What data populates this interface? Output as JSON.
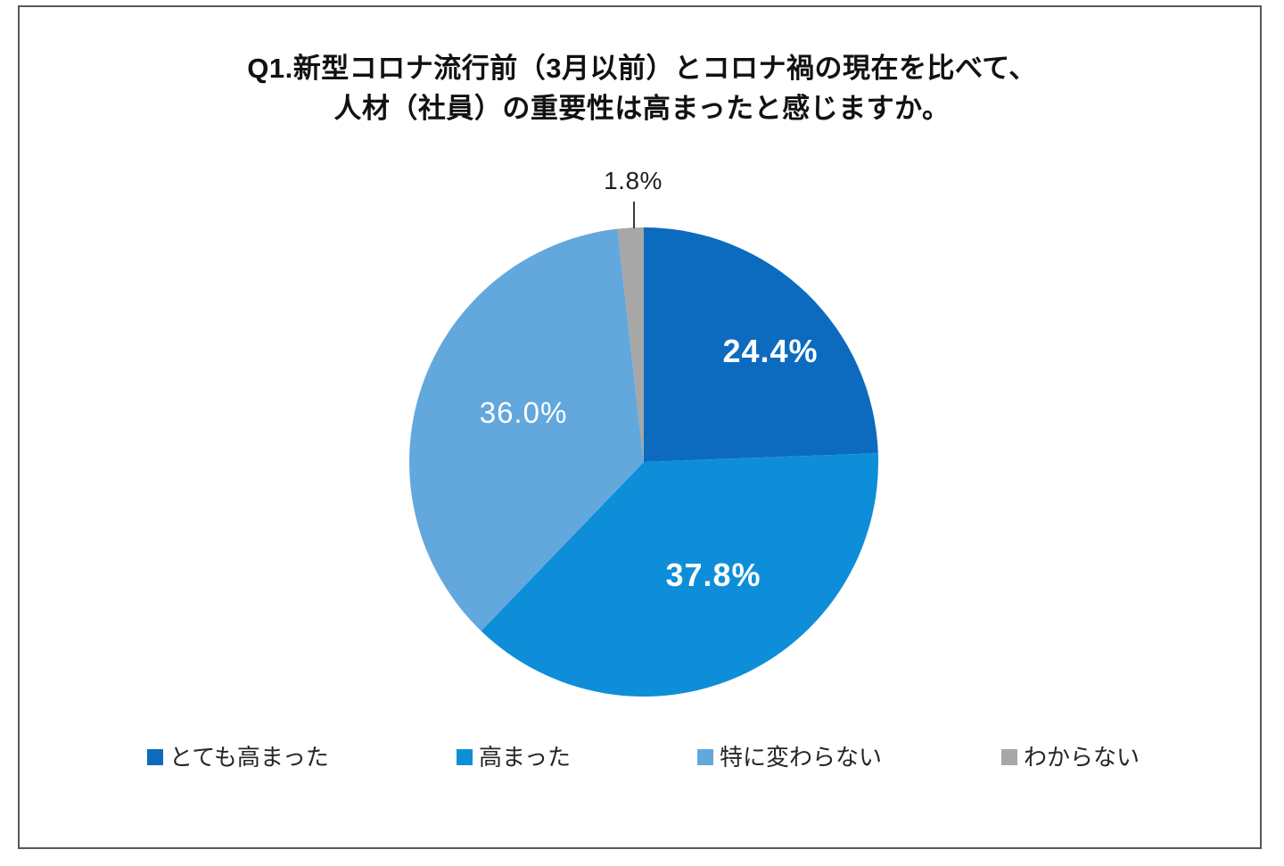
{
  "page": {
    "background_color": "#ffffff",
    "frame_border_color": "#585858"
  },
  "title": {
    "line1": "Q1.新型コロナ流行前（3月以前）とコロナ禍の現在を比べて、",
    "line2": "人材（社員）の重要性は高まったと感じますか。"
  },
  "chart_data": {
    "type": "pie",
    "title": "Q1.新型コロナ流行前（3月以前）とコロナ禍の現在を比べて、人材（社員）の重要性は高まったと感じますか。",
    "start_angle_deg": 0,
    "direction": "clockwise",
    "legend_position": "bottom",
    "slices": [
      {
        "name": "とても高まった",
        "value": 24.4,
        "label": "24.4%",
        "color": "#0d6bbf",
        "label_position": "inside"
      },
      {
        "name": "高まった",
        "value": 37.8,
        "label": "37.8%",
        "color": "#0e8ed8",
        "label_position": "inside"
      },
      {
        "name": "特に変わらない",
        "value": 36.0,
        "label": "36.0%",
        "color": "#62a8dd",
        "label_position": "inside"
      },
      {
        "name": "わからない",
        "value": 1.8,
        "label": "1.8%",
        "color": "#a7a7a7",
        "label_position": "outside-top"
      }
    ]
  }
}
